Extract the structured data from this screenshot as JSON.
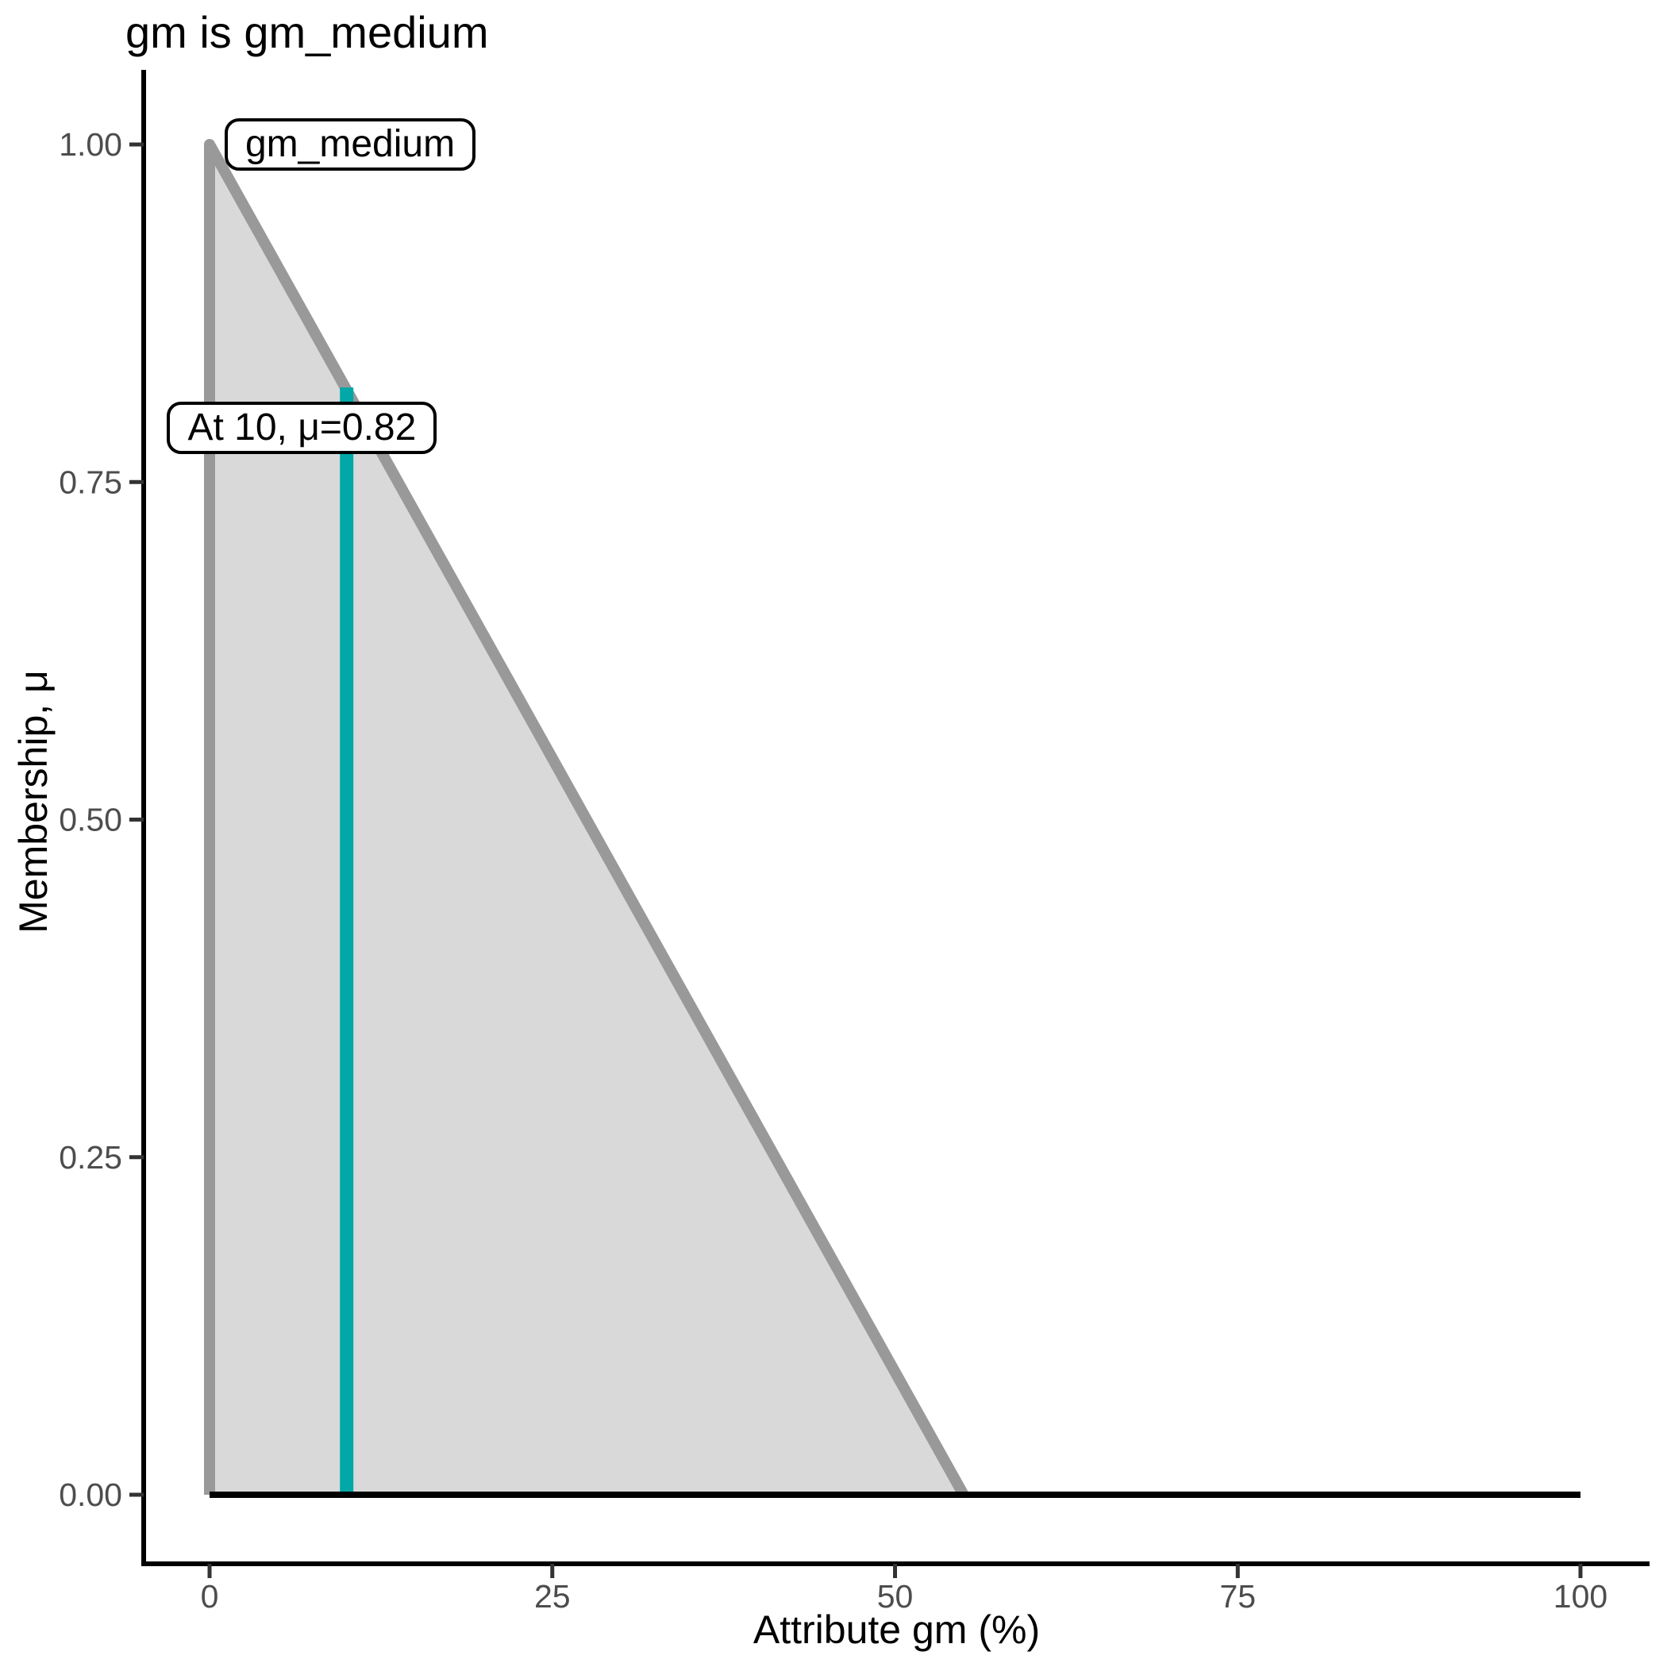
{
  "chart_data": {
    "type": "area",
    "title": "gm is gm_medium",
    "xlabel": "Attribute gm (%)",
    "ylabel": "Membership, μ",
    "xlim": [
      0,
      100
    ],
    "ylim": [
      0,
      1
    ],
    "grid": false,
    "legend": false,
    "x_ticks": {
      "values": [
        0,
        25,
        50,
        75,
        100
      ],
      "labels": [
        "0",
        "25",
        "50",
        "75",
        "100"
      ]
    },
    "y_ticks": {
      "values": [
        0,
        0.25,
        0.5,
        0.75,
        1
      ],
      "labels": [
        "0.00",
        "0.25",
        "0.50",
        "0.75",
        "1.00"
      ]
    },
    "fuzzy_set": {
      "name": "gm_medium",
      "vertices": [
        [
          0,
          0
        ],
        [
          0,
          1
        ],
        [
          55,
          0
        ]
      ],
      "outline": [
        [
          0,
          0
        ],
        [
          0,
          1
        ],
        [
          55,
          0
        ]
      ],
      "fill": "#D9D9D9",
      "stroke": "#999999"
    },
    "baseline": {
      "points": [
        [
          0,
          0
        ],
        [
          100,
          0
        ]
      ],
      "color": "#000000"
    },
    "crisp_input": {
      "x": 10,
      "mu": 0.82,
      "color": "#00A8A8"
    },
    "annotations": [
      {
        "text": "gm_medium",
        "x": 1.1,
        "y": 1.0
      },
      {
        "text": "At 10, μ=0.82",
        "x": -3.1,
        "y": 0.79
      }
    ],
    "colors": {
      "axis_spine": "#000000",
      "tick_mark": "#333333",
      "tick_label": "#4D4D4D",
      "background": "#FFFFFF"
    }
  }
}
